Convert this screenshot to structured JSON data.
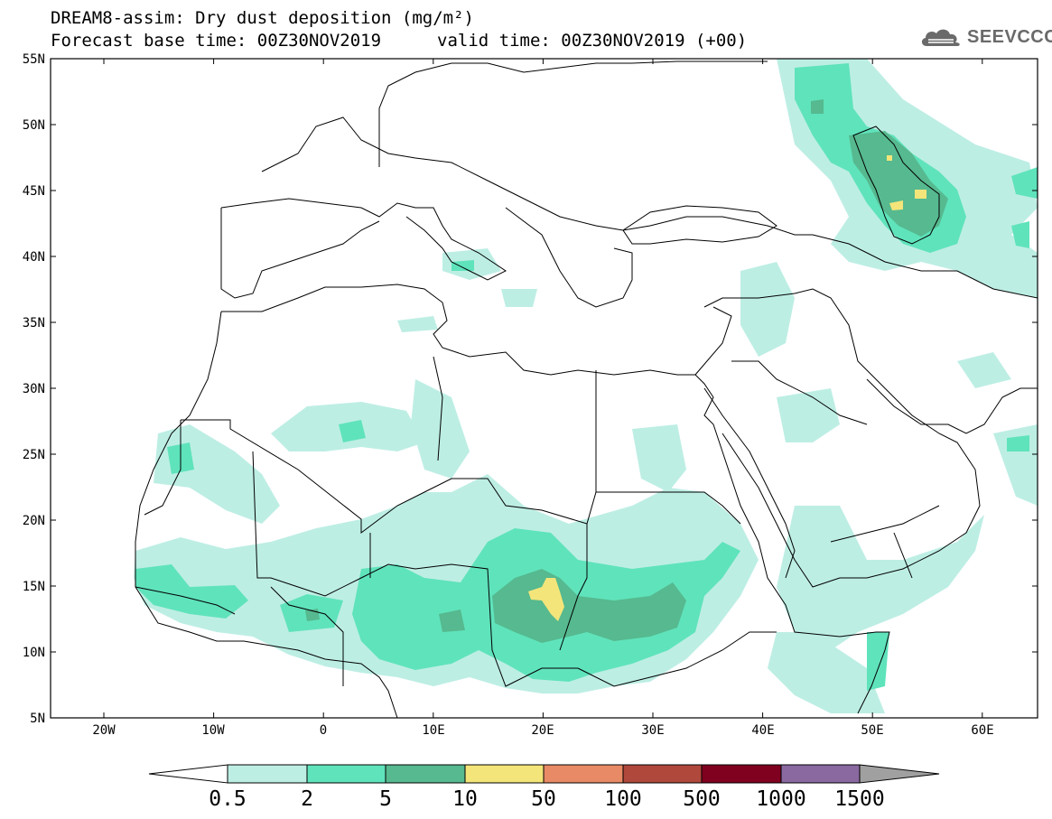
{
  "title": {
    "line1": "DREAM8-assim: Dry dust deposition (mg/m²)",
    "line2": "Forecast base time: 00Z30NOV2019",
    "valid": "valid time: 00Z30NOV2019 (+00)"
  },
  "logo": {
    "text": "SEEVCCC",
    "icon": "cloud-icon"
  },
  "axes": {
    "lat_labels": [
      "55N",
      "50N",
      "45N",
      "40N",
      "35N",
      "30N",
      "25N",
      "20N",
      "15N",
      "10N",
      "5N"
    ],
    "lon_labels": [
      "20W",
      "10W",
      "0",
      "10E",
      "20E",
      "30E",
      "40E",
      "50E",
      "60E"
    ]
  },
  "legend": {
    "colors": [
      "#bdeee4",
      "#5fe3bb",
      "#56b98f",
      "#f4e57a",
      "#e88a65",
      "#b0483c",
      "#800020",
      "#8a69a0",
      "#a0a0a0"
    ],
    "labels": [
      "0.5",
      "2",
      "5",
      "10",
      "50",
      "100",
      "500",
      "1000",
      "1500"
    ]
  },
  "colors": {
    "lev1": "#bdeee4",
    "lev2": "#5fe3bb",
    "lev3": "#56b98f",
    "lev4": "#f4e57a"
  }
}
